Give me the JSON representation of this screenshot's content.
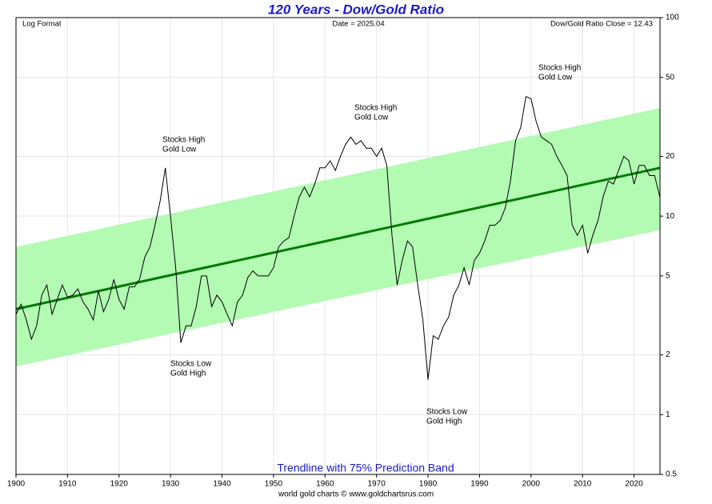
{
  "chart_data": {
    "type": "line",
    "title": "120 Years - Dow/Gold Ratio",
    "corner_labels": [
      "Log Format",
      "Date = 2025.04",
      "Dow/Gold Ratio Close = 12.43"
    ],
    "footer": "world gold charts © www.goldchartsrus.com",
    "x": [
      1900,
      1901,
      1902,
      1903,
      1904,
      1905,
      1906,
      1907,
      1908,
      1909,
      1910,
      1911,
      1912,
      1913,
      1914,
      1915,
      1916,
      1917,
      1918,
      1919,
      1920,
      1921,
      1922,
      1923,
      1924,
      1925,
      1926,
      1927,
      1928,
      1929,
      1930,
      1931,
      1932,
      1933,
      1934,
      1935,
      1936,
      1937,
      1938,
      1939,
      1940,
      1941,
      1942,
      1943,
      1944,
      1945,
      1946,
      1947,
      1948,
      1949,
      1950,
      1951,
      1952,
      1953,
      1954,
      1955,
      1956,
      1957,
      1958,
      1959,
      1960,
      1961,
      1962,
      1963,
      1964,
      1965,
      1966,
      1967,
      1968,
      1969,
      1970,
      1971,
      1972,
      1973,
      1974,
      1975,
      1976,
      1977,
      1978,
      1979,
      1980,
      1981,
      1982,
      1983,
      1984,
      1985,
      1986,
      1987,
      1988,
      1989,
      1990,
      1991,
      1992,
      1993,
      1994,
      1995,
      1996,
      1997,
      1998,
      1999,
      2000,
      2001,
      2002,
      2003,
      2004,
      2005,
      2006,
      2007,
      2008,
      2009,
      2010,
      2011,
      2012,
      2013,
      2014,
      2015,
      2016,
      2017,
      2018,
      2019,
      2020,
      2021,
      2022,
      2023,
      2024,
      2025.04
    ],
    "values": [
      3.2,
      3.6,
      3.0,
      2.4,
      2.8,
      4.0,
      4.5,
      3.2,
      3.8,
      4.5,
      3.9,
      4.0,
      4.3,
      3.7,
      3.4,
      3.0,
      4.2,
      3.3,
      3.8,
      4.8,
      3.8,
      3.4,
      4.4,
      4.4,
      4.8,
      6.2,
      7.0,
      9.0,
      12.0,
      17.5,
      10.0,
      5.5,
      2.3,
      2.8,
      2.8,
      3.5,
      5.0,
      5.0,
      3.5,
      4.0,
      3.7,
      3.2,
      2.8,
      3.7,
      4.0,
      4.9,
      5.3,
      5.0,
      5.0,
      5.0,
      5.5,
      7.0,
      7.5,
      7.8,
      10.0,
      12.5,
      14.0,
      12.5,
      14.5,
      17.5,
      17.5,
      19.0,
      17.0,
      20.0,
      23.0,
      25.0,
      23.0,
      24.0,
      22.0,
      22.0,
      20.0,
      22.0,
      18.0,
      8.0,
      4.5,
      6.0,
      7.5,
      7.0,
      4.5,
      3.0,
      1.5,
      2.5,
      2.4,
      2.8,
      3.1,
      4.0,
      4.5,
      5.5,
      4.5,
      6.0,
      6.5,
      7.5,
      9.0,
      9.0,
      9.5,
      11.0,
      15.0,
      24.0,
      28.0,
      40.0,
      39.0,
      30.0,
      25.0,
      24.0,
      23.0,
      20.0,
      18.0,
      16.0,
      9.0,
      8.0,
      9.0,
      6.5,
      8.0,
      9.5,
      12.5,
      15.0,
      14.5,
      17.0,
      20.0,
      19.0,
      14.5,
      18.0,
      18.0,
      16.0,
      16.0,
      12.43
    ],
    "color": "#000000",
    "trendline": {
      "label": "Trendline with 75% Prediction Band",
      "x": [
        1900,
        2025.04
      ],
      "values": [
        3.4,
        17.5
      ],
      "lower": [
        1.75,
        8.5
      ],
      "upper": [
        7.0,
        35
      ],
      "color": "#007a00",
      "band_color": "#b3fbb3"
    },
    "annotations": [
      [
        "Stocks High",
        "Gold Low"
      ],
      [
        "Stocks Low",
        "Gold High"
      ],
      [
        "Stocks High",
        "Gold Low"
      ],
      [
        "Stocks Low",
        "Gold High"
      ],
      [
        "Stocks High",
        "Gold Low"
      ]
    ],
    "xlim": [
      1900,
      2025.04
    ],
    "xticks": [
      1900,
      1910,
      1920,
      1930,
      1940,
      1950,
      1960,
      1970,
      1980,
      1990,
      2000,
      2010,
      2020
    ],
    "ylim": [
      0.5,
      100
    ],
    "yticks": [
      0.5,
      1,
      2,
      5,
      10,
      20,
      50,
      100
    ],
    "log_y": true,
    "grid": true
  }
}
